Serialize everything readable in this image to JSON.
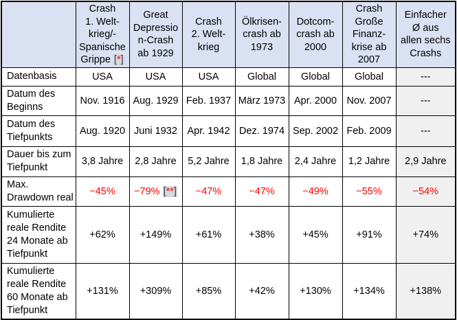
{
  "colors": {
    "header_bg": "#d9e1f2",
    "summary_bg": "#f0f0f0",
    "cell_bg": "#ffffff",
    "border": "#000000",
    "text": "#000000",
    "negative_text": "#ff0000",
    "marker_bg": "#d9d9d9",
    "marker_bracket": "#1f3864",
    "marker_star": "#ff0000"
  },
  "footnote_markers": [
    "[*]",
    "[**]"
  ],
  "table": {
    "corner_label": "",
    "columns": [
      {
        "header_lines": [
          "Crash",
          "1. Welt-",
          "krieg/-",
          "Spanische",
          "Grippe [*]"
        ],
        "is_summary": false
      },
      {
        "header_lines": [
          "Great",
          "Depressio",
          "n-Crash",
          "ab 1929"
        ],
        "is_summary": false
      },
      {
        "header_lines": [
          "Crash",
          "2. Welt-",
          "krieg"
        ],
        "is_summary": false
      },
      {
        "header_lines": [
          "Ölkrisen-",
          "crash ab",
          "1973"
        ],
        "is_summary": false
      },
      {
        "header_lines": [
          "Dotcom-",
          "crash ab",
          "2000"
        ],
        "is_summary": false
      },
      {
        "header_lines": [
          "Crash",
          "Große",
          "Finanz-",
          "krise ab",
          "2007"
        ],
        "is_summary": false
      },
      {
        "header_lines": [
          "Einfacher",
          "Ø aus",
          "allen sechs",
          "Crashs"
        ],
        "is_summary": true
      }
    ],
    "rows": [
      {
        "label_lines": [
          "Datenbasis"
        ],
        "negative": false,
        "values": [
          "USA",
          "USA",
          "USA",
          "Global",
          "Global",
          "Global",
          "---"
        ]
      },
      {
        "label_lines": [
          "Datum des",
          "Beginns"
        ],
        "negative": false,
        "values": [
          "Nov. 1916",
          "Aug. 1929",
          "Feb. 1937",
          "März 1973",
          "Apr. 2000",
          "Nov. 2007",
          "---"
        ]
      },
      {
        "label_lines": [
          "Datum des",
          "Tiefpunkts"
        ],
        "negative": false,
        "values": [
          "Aug. 1920",
          "Juni 1932",
          "Apr. 1942",
          "Dez. 1974",
          "Sep. 2002",
          "Feb. 2009",
          "---"
        ]
      },
      {
        "label_lines": [
          "Dauer bis zum",
          "Tiefpunkt"
        ],
        "negative": false,
        "values": [
          "3,8 Jahre",
          "2,8 Jahre",
          "5,2 Jahre",
          "1,8 Jahre",
          "2,4 Jahre",
          "1,2 Jahre",
          "2,9 Jahre"
        ]
      },
      {
        "label_lines": [
          "Max.",
          "Drawdown real"
        ],
        "negative": true,
        "values": [
          "−45%",
          "−79% [**]",
          "−47%",
          "−47%",
          "−49%",
          "−55%",
          "−54%"
        ]
      },
      {
        "label_lines": [
          "Kumulierte",
          "reale Rendite",
          "24 Monate ab",
          "Tiefpunkt"
        ],
        "negative": false,
        "values": [
          "+62%",
          "+149%",
          "+61%",
          "+38%",
          "+45%",
          "+91%",
          "+74%"
        ]
      },
      {
        "label_lines": [
          "Kumulierte",
          "reale Rendite",
          "60 Monate ab",
          "Tiefpunkt"
        ],
        "negative": false,
        "values": [
          "+131%",
          "+309%",
          "+85%",
          "+42%",
          "+130%",
          "+134%",
          "+138%"
        ]
      }
    ]
  },
  "chart_data": {
    "type": "table",
    "columns": [
      "",
      "Crash 1. Weltkrieg/- Spanische Grippe [*]",
      "Great Depression-Crash ab 1929",
      "Crash 2. Weltkrieg",
      "Ölkrisen-crash ab 1973",
      "Dotcom-crash ab 2000",
      "Crash Große Finanzkrise ab 2007",
      "Einfacher Ø aus allen sechs Crashs"
    ],
    "rows": [
      [
        "Datenbasis",
        "USA",
        "USA",
        "USA",
        "Global",
        "Global",
        "Global",
        "---"
      ],
      [
        "Datum des Beginns",
        "Nov. 1916",
        "Aug. 1929",
        "Feb. 1937",
        "März 1973",
        "Apr. 2000",
        "Nov. 2007",
        "---"
      ],
      [
        "Datum des Tiefpunkts",
        "Aug. 1920",
        "Juni 1932",
        "Apr. 1942",
        "Dez. 1974",
        "Sep. 2002",
        "Feb. 2009",
        "---"
      ],
      [
        "Dauer bis zum Tiefpunkt",
        "3,8 Jahre",
        "2,8 Jahre",
        "5,2 Jahre",
        "1,8 Jahre",
        "2,4 Jahre",
        "1,2 Jahre",
        "2,9 Jahre"
      ],
      [
        "Max. Drawdown real",
        "−45%",
        "−79% [**]",
        "−47%",
        "−47%",
        "−49%",
        "−55%",
        "−54%"
      ],
      [
        "Kumulierte reale Rendite 24 Monate ab Tiefpunkt",
        "+62%",
        "+149%",
        "+61%",
        "+38%",
        "+45%",
        "+91%",
        "+74%"
      ],
      [
        "Kumulierte reale Rendite 60 Monate ab Tiefpunkt",
        "+131%",
        "+309%",
        "+85%",
        "+42%",
        "+130%",
        "+134%",
        "+138%"
      ]
    ]
  }
}
